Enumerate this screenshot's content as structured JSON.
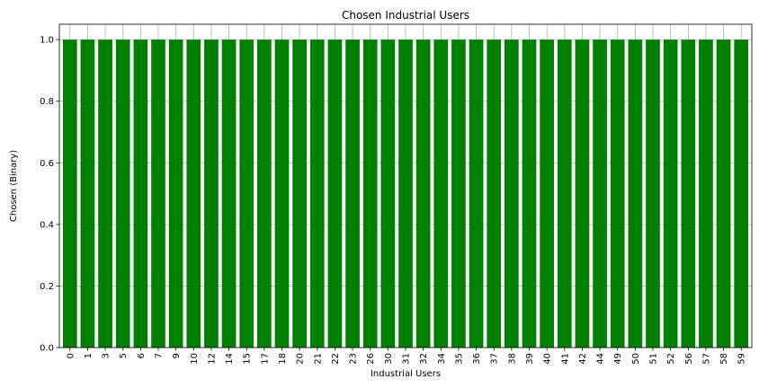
{
  "chart_data": {
    "type": "bar",
    "title": "Chosen Industrial Users",
    "xlabel": "Industrial Users",
    "ylabel": "Chosen (Binary)",
    "categories": [
      "0",
      "1",
      "3",
      "5",
      "6",
      "7",
      "9",
      "10",
      "12",
      "14",
      "15",
      "17",
      "18",
      "20",
      "21",
      "22",
      "23",
      "26",
      "30",
      "31",
      "32",
      "34",
      "35",
      "36",
      "37",
      "38",
      "39",
      "40",
      "41",
      "42",
      "44",
      "49",
      "50",
      "51",
      "52",
      "56",
      "57",
      "58",
      "59"
    ],
    "values": [
      1,
      1,
      1,
      1,
      1,
      1,
      1,
      1,
      1,
      1,
      1,
      1,
      1,
      1,
      1,
      1,
      1,
      1,
      1,
      1,
      1,
      1,
      1,
      1,
      1,
      1,
      1,
      1,
      1,
      1,
      1,
      1,
      1,
      1,
      1,
      1,
      1,
      1,
      1
    ],
    "ylim": [
      0,
      1.05
    ],
    "yticks": [
      "0.0",
      "0.2",
      "0.4",
      "0.6",
      "0.8",
      "1.0"
    ],
    "grid": true,
    "bar_color": "#008000"
  }
}
